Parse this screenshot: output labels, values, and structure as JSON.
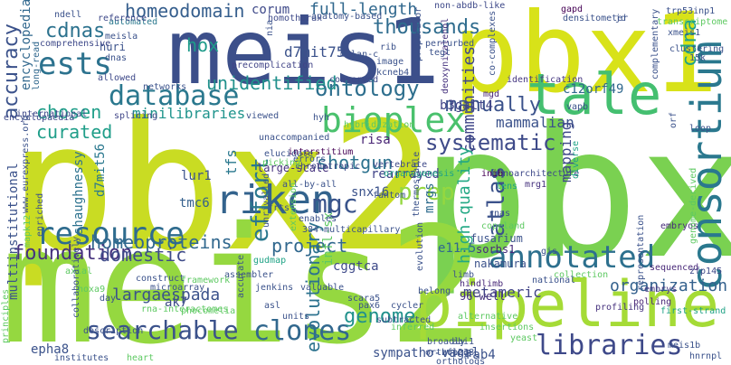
{
  "words": [
    {
      "text": "pbx2",
      "weight": 1.0,
      "color": "#c9dc23"
    },
    {
      "text": "meis1",
      "weight": 0.95,
      "color": "#3c4f8a"
    },
    {
      "text": "pbx",
      "weight": 0.95,
      "color": "#7ad151"
    },
    {
      "text": "meis2",
      "weight": 0.9,
      "color": "#95d840"
    },
    {
      "text": "pbx1",
      "weight": 0.85,
      "color": "#d8e219"
    },
    {
      "text": "pipeline",
      "weight": 0.7,
      "color": "#a5db36"
    },
    {
      "text": "tale",
      "weight": 0.7,
      "color": "#44bf70"
    },
    {
      "text": "consortium",
      "weight": 0.6,
      "color": "#2a788e"
    },
    {
      "text": "bioplex",
      "weight": 0.55,
      "color": "#4ac16d"
    },
    {
      "text": "riken",
      "weight": 0.55,
      "color": "#33638d"
    },
    {
      "text": "annotated",
      "weight": 0.5,
      "color": "#2d708e"
    },
    {
      "text": "database",
      "weight": 0.5,
      "color": "#2a788e"
    },
    {
      "text": "resource",
      "weight": 0.5,
      "color": "#2f6c8e"
    },
    {
      "text": "ests",
      "weight": 0.45,
      "color": "#2c728e"
    },
    {
      "text": "clones",
      "weight": 0.45,
      "color": "#31688e"
    },
    {
      "text": "searchable",
      "weight": 0.45,
      "color": "#3b528b"
    },
    {
      "text": "libraries",
      "weight": 0.45,
      "color": "#3e4989"
    },
    {
      "text": "ontology",
      "weight": 0.42,
      "color": "#2e6f8e"
    },
    {
      "text": "cdnas",
      "weight": 0.4,
      "color": "#2c728e"
    },
    {
      "text": "homeodomain",
      "weight": 0.4,
      "color": "#355e8d"
    },
    {
      "text": "accuracy",
      "weight": 0.4,
      "color": "#3b528b"
    },
    {
      "text": "thousands",
      "weight": 0.38,
      "color": "#2f6c8e"
    },
    {
      "text": "unidentified",
      "weight": 0.38,
      "color": "#21918c"
    },
    {
      "text": "effort",
      "weight": 0.38,
      "color": "#2a788e"
    },
    {
      "text": "prep",
      "weight": 0.38,
      "color": "#95d840"
    },
    {
      "text": "mgc",
      "weight": 0.38,
      "color": "#3a548c"
    },
    {
      "text": "atlas",
      "weight": 0.38,
      "color": "#3b528b"
    },
    {
      "text": "systematic",
      "weight": 0.35,
      "color": "#3e4a89"
    },
    {
      "text": "manually",
      "weight": 0.35,
      "color": "#3b528b"
    },
    {
      "text": "hox",
      "weight": 0.35,
      "color": "#1e9b8a"
    },
    {
      "text": "cdna",
      "weight": 0.35,
      "color": "#20a386"
    },
    {
      "text": "full-length",
      "weight": 0.32,
      "color": "#31688e"
    },
    {
      "text": "homeoproteins",
      "weight": 0.32,
      "color": "#31688e"
    },
    {
      "text": "genome",
      "weight": 0.32,
      "color": "#21918c"
    },
    {
      "text": "shotgun",
      "weight": 0.32,
      "color": "#2c728e"
    },
    {
      "text": "foundation",
      "weight": 0.32,
      "color": "#46327e"
    },
    {
      "text": "domestic",
      "weight": 0.32,
      "color": "#3e4a89"
    },
    {
      "text": "project",
      "weight": 0.3,
      "color": "#31688e"
    },
    {
      "text": "curated",
      "weight": 0.3,
      "color": "#1f9e89"
    },
    {
      "text": "chosen",
      "weight": 0.3,
      "color": "#1f9e89"
    },
    {
      "text": "communities",
      "weight": 0.3,
      "color": "#404688"
    },
    {
      "text": "high-quality",
      "weight": 0.3,
      "color": "#22a884"
    },
    {
      "text": "evolutionary",
      "weight": 0.3,
      "color": "#2c728e"
    },
    {
      "text": "mammalian",
      "weight": 0.28,
      "color": "#3b528b"
    },
    {
      "text": "organization",
      "weight": 0.28,
      "color": "#34618d"
    },
    {
      "text": "mapping",
      "weight": 0.28,
      "color": "#3e4989"
    },
    {
      "text": "d7mit75",
      "weight": 0.28,
      "color": "#3b528b"
    },
    {
      "text": "minilibraries",
      "weight": 0.28,
      "color": "#1f948c"
    },
    {
      "text": "metameric",
      "weight": 0.28,
      "color": "#414487"
    },
    {
      "text": "largaespada",
      "weight": 0.28,
      "color": "#3b528b"
    },
    {
      "text": "c12orf49",
      "weight": 0.26,
      "color": "#31688e"
    },
    {
      "text": "b3galt4",
      "weight": 0.26,
      "color": "#414487"
    },
    {
      "text": "tfs",
      "weight": 0.26,
      "color": "#2a788e"
    },
    {
      "text": "sympatho-vagal",
      "weight": 0.26,
      "color": "#3b528b"
    },
    {
      "text": "encyclopedia",
      "weight": 0.25,
      "color": "#31688e"
    },
    {
      "text": "rearrayed",
      "weight": 0.25,
      "color": "#404387"
    },
    {
      "text": "risa",
      "weight": 0.25,
      "color": "#482475"
    },
    {
      "text": "corum",
      "weight": 0.25,
      "color": "#3e4989"
    },
    {
      "text": "shaughnessy",
      "weight": 0.25,
      "color": "#2c728e"
    },
    {
      "text": "d7mit56",
      "weight": 0.25,
      "color": "#2a788e"
    },
    {
      "text": "multiinstitutional",
      "weight": 0.25,
      "color": "#3b528b"
    },
    {
      "text": "cggtca",
      "weight": 0.25,
      "color": "#3e4a89"
    },
    {
      "text": "e11.5",
      "weight": 0.25,
      "color": "#31688e"
    },
    {
      "text": "ak7",
      "weight": 0.25,
      "color": "#3e4a89"
    },
    {
      "text": "snx16",
      "weight": 0.25,
      "color": "#3b528b"
    },
    {
      "text": "mrgs",
      "weight": 0.25,
      "color": "#2f6c8e"
    },
    {
      "text": "lur1",
      "weight": 0.24,
      "color": "#3b528b"
    },
    {
      "text": "tmc6",
      "weight": 0.24,
      "color": "#35608d"
    },
    {
      "text": "epha8",
      "weight": 0.24,
      "color": "#3b528b"
    },
    {
      "text": "rab4",
      "weight": 0.24,
      "color": "#3b528b"
    },
    {
      "text": "infl-sx",
      "weight": 0.24,
      "color": "#5ec962"
    },
    {
      "text": "huri",
      "weight": 0.22,
      "color": "#3b528b"
    },
    {
      "text": "long-read",
      "weight": 0.2,
      "color": "#31688e"
    },
    {
      "text": "nakamura",
      "weight": 0.2,
      "color": "#3b528b"
    },
    {
      "text": "sorbs1",
      "weight": 0.2,
      "color": "#472a7a"
    },
    {
      "text": "fusarium",
      "weight": 0.2,
      "color": "#3b528b"
    },
    {
      "text": "interstitium",
      "weight": 0.2,
      "color": "#440154"
    },
    {
      "text": "genoarchitecture",
      "weight": 0.2,
      "color": "#3e4989"
    },
    {
      "text": "large-scale",
      "weight": 0.18,
      "color": "#46327e"
    },
    {
      "text": "mrg1",
      "weight": 0.18,
      "color": "#46327e"
    },
    {
      "text": "96-well",
      "weight": 0.18,
      "color": "#46327e"
    },
    {
      "text": "splicing",
      "weight": 0.18,
      "color": "#404688"
    },
    {
      "text": "hindlimb",
      "weight": 0.18,
      "color": "#482878"
    },
    {
      "text": "zfp145",
      "weight": 0.18,
      "color": "#3e4989"
    },
    {
      "text": "identification",
      "weight": 0.18,
      "color": "#453781"
    },
    {
      "text": "embrys",
      "weight": 0.18,
      "color": "#453781"
    },
    {
      "text": "organogenesis",
      "weight": 0.18,
      "color": "#20a386"
    },
    {
      "text": "chronotropic",
      "weight": 0.18,
      "color": "#3e4989"
    },
    {
      "text": "vertebrate",
      "weight": 0.16,
      "color": "#3e4989"
    },
    {
      "text": "inib",
      "weight": 0.16,
      "color": "#440154"
    },
    {
      "text": "mgd",
      "weight": 0.16,
      "color": "#482475"
    },
    {
      "text": "polling",
      "weight": 0.16,
      "color": "#482475"
    },
    {
      "text": "profiling",
      "weight": 0.16,
      "color": "#46327e"
    },
    {
      "text": "sequenced",
      "weight": 0.16,
      "color": "#482878"
    },
    {
      "text": "embryos",
      "weight": 0.16,
      "color": "#472c7a"
    },
    {
      "text": "first-strand",
      "weight": 0.16,
      "color": "#20a386"
    },
    {
      "text": "hybridization",
      "weight": 0.16,
      "color": "#5ec962"
    },
    {
      "text": "conserved",
      "weight": 0.16,
      "color": "#3e4989"
    },
    {
      "text": "precomplication",
      "weight": 0.16,
      "color": "#414487"
    },
    {
      "text": "networks",
      "weight": 0.16,
      "color": "#3b528b"
    },
    {
      "text": "allowed",
      "weight": 0.16,
      "color": "#3e4989"
    },
    {
      "text": "automated",
      "weight": 0.16,
      "color": "#2a788e"
    },
    {
      "text": "comprehensive",
      "weight": 0.16,
      "color": "#3e4989"
    },
    {
      "text": "encyclopaedia",
      "weight": 0.16,
      "color": "#3e4989"
    },
    {
      "text": "international",
      "weight": 0.16,
      "color": "#3e4989"
    },
    {
      "text": "reference",
      "weight": 0.16,
      "color": "#3e4989"
    },
    {
      "text": "homothorax",
      "weight": 0.16,
      "color": "#3e4989"
    },
    {
      "text": "anatomy-based",
      "weight": 0.16,
      "color": "#3b528b"
    },
    {
      "text": "non-abdb-like",
      "weight": 0.16,
      "color": "#3e4989"
    },
    {
      "text": "gapd",
      "weight": 0.16,
      "color": "#440154"
    },
    {
      "text": "densitometer",
      "weight": 0.16,
      "color": "#3b528b"
    },
    {
      "text": "trp53inp1",
      "weight": 0.16,
      "color": "#3b528b"
    },
    {
      "text": "transcriptome",
      "weight": 0.16,
      "color": "#5ec962"
    },
    {
      "text": "xmeis1",
      "weight": 0.16,
      "color": "#3b528b"
    },
    {
      "text": "clustering",
      "weight": 0.16,
      "color": "#3b528b"
    },
    {
      "text": "complementary",
      "weight": 0.16,
      "color": "#3b528b"
    },
    {
      "text": "melan-c",
      "weight": 0.16,
      "color": "#3b528b"
    },
    {
      "text": "kcneb4",
      "weight": 0.16,
      "color": "#3b528b"
    },
    {
      "text": "perturbed",
      "weight": 0.16,
      "color": "#3b528b"
    },
    {
      "text": "deoxynivalenol",
      "weight": 0.16,
      "color": "#46327e"
    },
    {
      "text": "co-complexes",
      "weight": 0.16,
      "color": "#3b528b"
    },
    {
      "text": "preparator",
      "weight": 0.14,
      "color": "#3b528b"
    },
    {
      "text": "ndell",
      "weight": 0.14,
      "color": "#3b528b"
    },
    {
      "text": "meisla",
      "weight": 0.14,
      "color": "#3b528b"
    },
    {
      "text": "dnas",
      "weight": 0.14,
      "color": "#3b528b"
    },
    {
      "text": "nia",
      "weight": 0.14,
      "color": "#3b528b"
    },
    {
      "text": "rib",
      "weight": 0.14,
      "color": "#3b528b"
    },
    {
      "text": "tegt",
      "weight": 0.14,
      "color": "#3b528b"
    },
    {
      "text": "image",
      "weight": 0.14,
      "color": "#3b528b"
    },
    {
      "text": "jd",
      "weight": 0.14,
      "color": "#3b528b"
    },
    {
      "text": "15k",
      "weight": 0.14,
      "color": "#3b528b"
    },
    {
      "text": "diverse",
      "weight": 0.14,
      "color": "#20a386"
    },
    {
      "text": "vapb",
      "weight": 0.14,
      "color": "#3b528b"
    },
    {
      "text": "loop",
      "weight": 0.14,
      "color": "#3b528b"
    },
    {
      "text": "orf",
      "weight": 0.14,
      "color": "#3b528b"
    },
    {
      "text": "ortholog",
      "weight": 0.14,
      "color": "#3b528b"
    },
    {
      "text": "orthologs",
      "weight": 0.14,
      "color": "#3b528b"
    },
    {
      "text": "genome-derived",
      "weight": 0.14,
      "color": "#5ec962"
    },
    {
      "text": "hyh",
      "weight": 0.14,
      "color": "#3b528b"
    },
    {
      "text": "viewed",
      "weight": 0.14,
      "color": "#3b528b"
    },
    {
      "text": "unaccompanied",
      "weight": 0.14,
      "color": "#3b528b"
    },
    {
      "text": "picking",
      "weight": 0.14,
      "color": "#5ec962"
    },
    {
      "text": "elucidate",
      "weight": 0.14,
      "color": "#3b528b"
    },
    {
      "text": "errors",
      "weight": 0.14,
      "color": "#3b528b"
    },
    {
      "text": "all-by-all",
      "weight": 0.14,
      "color": "#3b528b"
    },
    {
      "text": "fantom",
      "weight": 0.14,
      "color": "#3b528b"
    },
    {
      "text": "lens",
      "weight": 0.14,
      "color": "#20a386"
    },
    {
      "text": "copeland",
      "weight": 0.14,
      "color": "#5ec962"
    },
    {
      "text": "rnas",
      "weight": 0.14,
      "color": "#3b528b"
    },
    {
      "text": "gis",
      "weight": 0.14,
      "color": "#3b528b"
    },
    {
      "text": "collection",
      "weight": 0.14,
      "color": "#5ec962"
    },
    {
      "text": "representation",
      "weight": 0.14,
      "color": "#3b528b"
    },
    {
      "text": "limb",
      "weight": 0.14,
      "color": "#3b528b"
    },
    {
      "text": "alternative",
      "weight": 0.14,
      "color": "#5ec962"
    },
    {
      "text": "insertions",
      "weight": 0.14,
      "color": "#5ec962"
    },
    {
      "text": "thermostable",
      "weight": 0.14,
      "color": "#3b528b"
    },
    {
      "text": "frts",
      "weight": 0.14,
      "color": "#3b528b"
    },
    {
      "text": "enables",
      "weight": 0.14,
      "color": "#3b528b"
    },
    {
      "text": "384-multicapillary",
      "weight": 0.14,
      "color": "#3b528b"
    },
    {
      "text": "extension",
      "weight": 0.14,
      "color": "#5ec962"
    },
    {
      "text": "gudmap",
      "weight": 0.14,
      "color": "#20a386"
    },
    {
      "text": "assembler",
      "weight": 0.14,
      "color": "#3b528b"
    },
    {
      "text": "framework",
      "weight": 0.14,
      "color": "#5ec962"
    },
    {
      "text": "construct",
      "weight": 0.14,
      "color": "#3b528b"
    },
    {
      "text": "day",
      "weight": 0.14,
      "color": "#3b528b"
    },
    {
      "text": "hoxa9",
      "weight": 0.14,
      "color": "#5ec962"
    },
    {
      "text": "axial",
      "weight": 0.14,
      "color": "#5ec962"
    },
    {
      "text": "enriched",
      "weight": 0.14,
      "color": "#3b528b"
    },
    {
      "text": "mapk12",
      "weight": 0.14,
      "color": "#5ec962"
    },
    {
      "text": "www.eurexpress.org",
      "weight": 0.14,
      "color": "#3b528b"
    },
    {
      "text": "unrivalled",
      "weight": 0.14,
      "color": "#3b528b"
    },
    {
      "text": "accurate",
      "weight": 0.14,
      "color": "#3b528b"
    },
    {
      "text": "microarray",
      "weight": 0.14,
      "color": "#3b528b"
    },
    {
      "text": "rna-interactomes",
      "weight": 0.14,
      "color": "#5ec962"
    },
    {
      "text": "collaboratively",
      "weight": 0.14,
      "color": "#3b528b"
    },
    {
      "text": "phocomelia",
      "weight": 0.14,
      "color": "#5ec962"
    },
    {
      "text": "description",
      "weight": 0.14,
      "color": "#3b528b"
    },
    {
      "text": "principles",
      "weight": 0.14,
      "color": "#5ec962"
    },
    {
      "text": "institutes",
      "weight": 0.14,
      "color": "#3b528b"
    },
    {
      "text": "heart",
      "weight": 0.14,
      "color": "#5ec962"
    },
    {
      "text": "jenkins",
      "weight": 0.14,
      "color": "#3b528b"
    },
    {
      "text": "units",
      "weight": 0.14,
      "color": "#3b528b"
    },
    {
      "text": "asl",
      "weight": 0.14,
      "color": "#3b528b"
    },
    {
      "text": "valuable",
      "weight": 0.14,
      "color": "#3b528b"
    },
    {
      "text": "scara5",
      "weight": 0.14,
      "color": "#3b528b"
    },
    {
      "text": "pax6",
      "weight": 0.14,
      "color": "#3b528b"
    },
    {
      "text": "subtracted",
      "weight": 0.14,
      "color": "#3b528b"
    },
    {
      "text": "cycler",
      "weight": 0.14,
      "color": "#3b528b"
    },
    {
      "text": "inferred",
      "weight": 0.14,
      "color": "#5ec962"
    },
    {
      "text": "evolution",
      "weight": 0.14,
      "color": "#3b528b"
    },
    {
      "text": "belong",
      "weight": 0.14,
      "color": "#3b528b"
    },
    {
      "text": "national",
      "weight": 0.14,
      "color": "#3b528b"
    },
    {
      "text": "broadly",
      "weight": 0.14,
      "color": "#3b528b"
    },
    {
      "text": "abi1",
      "weight": 0.14,
      "color": "#3b528b"
    },
    {
      "text": "zfp238",
      "weight": 0.14,
      "color": "#3b528b"
    },
    {
      "text": "yeast",
      "weight": 0.14,
      "color": "#5ec962"
    },
    {
      "text": "meis1b",
      "weight": 0.14,
      "color": "#3b528b"
    },
    {
      "text": "hnrnpl",
      "weight": 0.14,
      "color": "#3b528b"
    }
  ]
}
